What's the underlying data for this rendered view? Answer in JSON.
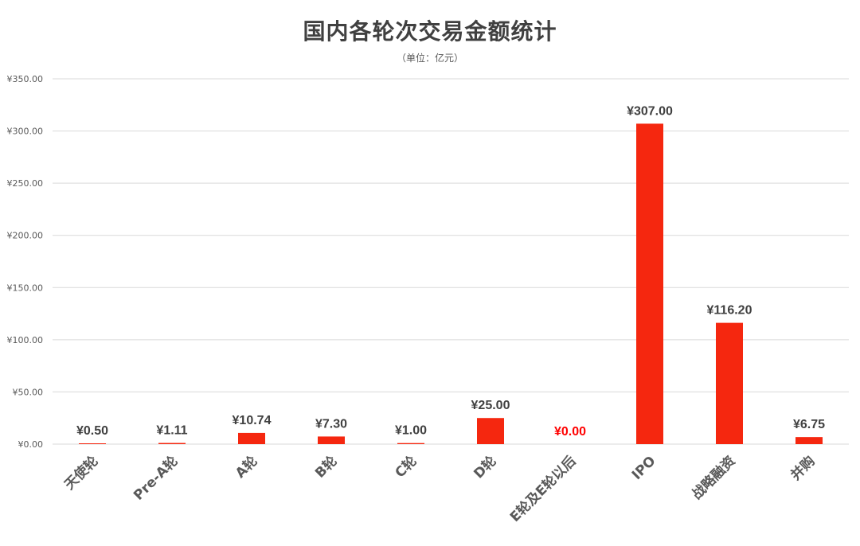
{
  "chart_data": {
    "type": "bar",
    "title": "国内各轮次交易金额统计",
    "subtitle": "（单位：亿元）",
    "categories": [
      "天使轮",
      "Pre-A轮",
      "A轮",
      "B轮",
      "C轮",
      "D轮",
      "E轮及E轮以后",
      "IPO",
      "战略融资",
      "并购"
    ],
    "values": [
      0.5,
      1.11,
      10.74,
      7.3,
      1.0,
      25.0,
      0.0,
      307.0,
      116.2,
      6.75
    ],
    "data_labels": [
      "¥0.50",
      "¥1.11",
      "¥10.74",
      "¥7.30",
      "¥1.00",
      "¥25.00",
      "¥0.00",
      "¥307.00",
      "¥116.20",
      "¥6.75"
    ],
    "highlight_index": 6,
    "yticks": [
      0,
      50,
      100,
      150,
      200,
      250,
      300,
      350
    ],
    "ytick_labels": [
      "¥0.00",
      "¥50.00",
      "¥100.00",
      "¥150.00",
      "¥200.00",
      "¥250.00",
      "¥300.00",
      "¥350.00"
    ],
    "ylim": [
      0,
      350
    ],
    "grid": true,
    "xlabel": "",
    "ylabel": "",
    "colors": {
      "bar": "#f5270f",
      "highlight_label": "#ff0000",
      "label": "#404040",
      "tick": "#595959",
      "grid": "#d9d9d9"
    }
  }
}
